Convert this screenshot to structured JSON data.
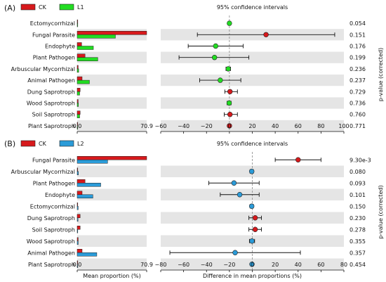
{
  "chart_data": [
    {
      "type": "bar",
      "panel": "(A)",
      "legend": [
        {
          "name": "CK",
          "color": "#d7191c"
        },
        {
          "name": "L1",
          "color": "#22dd22"
        }
      ],
      "categories": [
        "Ectomycorrhizal",
        "Fungal Parasite",
        "Endophyte",
        "Plant Pathogen",
        "Arbuscular Mycorrhizal",
        "Animal Pathogen",
        "Dung Saprotroph",
        "Wood Saprotroph",
        "Soil Saprotroph",
        "Plant Saprotroph"
      ],
      "series": [
        {
          "name": "CK",
          "values": [
            0.2,
            70.9,
            4.5,
            8.0,
            1.0,
            5.0,
            3.0,
            1.0,
            3.0,
            0.3
          ]
        },
        {
          "name": "L1",
          "values": [
            0.4,
            39.0,
            16.5,
            21.0,
            1.5,
            12.5,
            2.5,
            1.2,
            2.5,
            0.4
          ]
        }
      ],
      "bar_axis": {
        "ticks": [
          "0.0",
          "70.9"
        ],
        "max": 70.9
      },
      "ci_title": "95% confidence intervals",
      "ci_xlim": [
        -60,
        100
      ],
      "ci_ticks": [
        "−60",
        "−40",
        "−20",
        "0",
        "20",
        "40",
        "60",
        "80",
        "100"
      ],
      "ci_tick_values": [
        -60,
        -40,
        -20,
        0,
        20,
        40,
        60,
        80,
        100
      ],
      "differences": [
        {
          "value": 0.0,
          "low": -1.0,
          "high": 1.0,
          "color": "#22dd22"
        },
        {
          "value": 32.0,
          "low": -28.0,
          "high": 92.0,
          "color": "#d7191c"
        },
        {
          "value": -12.0,
          "low": -36.0,
          "high": 12.0,
          "color": "#22dd22"
        },
        {
          "value": -13.0,
          "low": -44.0,
          "high": 17.0,
          "color": "#22dd22"
        },
        {
          "value": -1.0,
          "low": -3.0,
          "high": 1.0,
          "color": "#22dd22"
        },
        {
          "value": -8.0,
          "low": -26.0,
          "high": 10.0,
          "color": "#22dd22"
        },
        {
          "value": 0.5,
          "low": -4.0,
          "high": 7.0,
          "color": "#d7191c"
        },
        {
          "value": -0.2,
          "low": -2.0,
          "high": 1.5,
          "color": "#22dd22"
        },
        {
          "value": 0.5,
          "low": -4.5,
          "high": 7.0,
          "color": "#d7191c"
        },
        {
          "value": 0.0,
          "low": -1.0,
          "high": 1.0,
          "color": "#d7191c"
        }
      ],
      "p_values": [
        "0.054",
        "0.151",
        "0.176",
        "0.199",
        "0.236",
        "0.237",
        "0.729",
        "0.736",
        "0.760",
        "0.771"
      ],
      "p_label": "p-value (corrected)"
    },
    {
      "type": "bar",
      "panel": "(B)",
      "legend": [
        {
          "name": "CK",
          "color": "#d7191c"
        },
        {
          "name": "L2",
          "color": "#2b9bd8"
        }
      ],
      "categories": [
        "Fungal Parasite",
        "Arbuscular Mycorrhizal",
        "Plant Pathogen",
        "Endophyte",
        "Ectomycorrhizal",
        "Dung Saprotroph",
        "Soil Saprotroph",
        "Wood Saprotroph",
        "Animal Pathogen",
        "Plant Saprotroph"
      ],
      "series": [
        {
          "name": "CK",
          "values": [
            70.9,
            0.5,
            8.0,
            5.0,
            0.3,
            3.0,
            3.0,
            1.0,
            5.0,
            0.3
          ]
        },
        {
          "name": "L2",
          "values": [
            31.0,
            1.2,
            24.0,
            16.0,
            1.0,
            0.8,
            0.5,
            1.0,
            20.0,
            0.6
          ]
        }
      ],
      "bar_axis": {
        "ticks": [
          "0.0",
          "70.9"
        ],
        "max": 70.9
      },
      "ci_title": "95% confidence intervals",
      "ci_xlim": [
        -80,
        80
      ],
      "ci_ticks": [
        "−80",
        "−60",
        "−40",
        "−20",
        "0",
        "20",
        "40",
        "60",
        "80"
      ],
      "ci_tick_values": [
        -80,
        -60,
        -40,
        -20,
        0,
        20,
        40,
        60,
        80
      ],
      "differences": [
        {
          "value": 40.0,
          "low": 20.0,
          "high": 60.0,
          "color": "#d7191c"
        },
        {
          "value": -0.5,
          "low": -2.0,
          "high": 1.0,
          "color": "#2b9bd8"
        },
        {
          "value": -16.0,
          "low": -38.0,
          "high": 6.0,
          "color": "#2b9bd8"
        },
        {
          "value": -11.0,
          "low": -28.0,
          "high": 6.0,
          "color": "#2b9bd8"
        },
        {
          "value": -0.5,
          "low": -2.0,
          "high": 1.0,
          "color": "#2b9bd8"
        },
        {
          "value": 2.5,
          "low": -3.0,
          "high": 8.0,
          "color": "#d7191c"
        },
        {
          "value": 2.5,
          "low": -3.0,
          "high": 8.0,
          "color": "#d7191c"
        },
        {
          "value": -0.3,
          "low": -2.5,
          "high": 2.0,
          "color": "#2b9bd8"
        },
        {
          "value": -15.0,
          "low": -72.0,
          "high": 42.0,
          "color": "#2b9bd8"
        },
        {
          "value": -0.3,
          "low": -1.0,
          "high": 0.5,
          "color": "#2b9bd8"
        }
      ],
      "p_values": [
        "9.30e-3",
        "0.080",
        "0.093",
        "0.101",
        "0.150",
        "0.230",
        "0.278",
        "0.355",
        "0.357",
        "0.454"
      ],
      "p_label": "p-value (corrected)",
      "bar_xlabel": "Mean proportion (%)",
      "ci_xlabel": "Difference in mean proportions (%)"
    }
  ]
}
